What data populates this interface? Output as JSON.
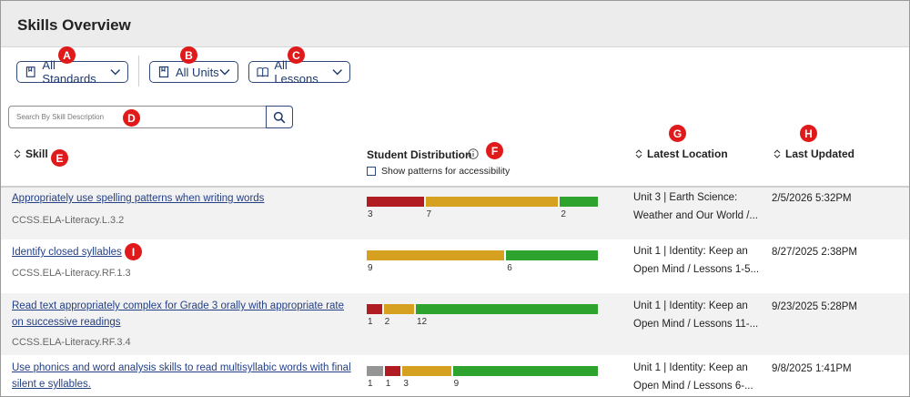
{
  "header": {
    "title": "Skills Overview"
  },
  "filters": {
    "standards_label": "All Standards",
    "units_label": "All Units",
    "lessons_label": "All Lessons"
  },
  "search": {
    "placeholder": "Search By Skill Description"
  },
  "columns": {
    "skill": "Skill",
    "distribution": "Student Distribution",
    "accessibility": "Show patterns for accessibility",
    "location": "Latest Location",
    "updated": "Last Updated"
  },
  "callouts": {
    "A": "A",
    "B": "B",
    "C": "C",
    "D": "D",
    "E": "E",
    "F": "F",
    "G": "G",
    "H": "H",
    "I": "I"
  },
  "colors": {
    "gray": "#959595",
    "red": "#b01c22",
    "yellow": "#d6a021",
    "green": "#2ea42e",
    "link": "#233f85"
  },
  "rows": [
    {
      "skill": "Appropriately use spelling patterns when writing words",
      "code": "CCSS.ELA-Literacy.L.3.2",
      "distribution": [
        {
          "color": "red",
          "count": "3"
        },
        {
          "color": "yellow",
          "count": "7"
        },
        {
          "color": "green",
          "count": "2"
        }
      ],
      "location": "Unit 3 | Earth Science: Weather and Our World /...",
      "updated": "2/5/2026 5:32PM"
    },
    {
      "skill": "Identify closed syllables",
      "code": "CCSS.ELA-Literacy.RF.1.3",
      "distribution": [
        {
          "color": "yellow",
          "count": "9"
        },
        {
          "color": "green",
          "count": "6"
        }
      ],
      "location": "Unit 1 | Identity: Keep an Open Mind / Lessons 1-5...",
      "updated": "8/27/2025 2:38PM"
    },
    {
      "skill": "Read text appropriately complex for Grade 3 orally with appropriate rate on successive readings",
      "code": "CCSS.ELA-Literacy.RF.3.4",
      "distribution": [
        {
          "color": "red",
          "count": "1"
        },
        {
          "color": "yellow",
          "count": "2"
        },
        {
          "color": "green",
          "count": "12"
        }
      ],
      "location": "Unit 1 | Identity: Keep an Open Mind / Lessons 11-...",
      "updated": "9/23/2025 5:28PM"
    },
    {
      "skill": "Use phonics and word analysis skills to read multisyllabic words with final silent e syllables.",
      "code": "",
      "distribution": [
        {
          "color": "gray",
          "count": "1"
        },
        {
          "color": "red",
          "count": "1"
        },
        {
          "color": "yellow",
          "count": "3"
        },
        {
          "color": "green",
          "count": "9"
        }
      ],
      "location": "Unit 1 | Identity: Keep an Open Mind / Lessons 6-...",
      "updated": "9/8/2025 1:41PM"
    }
  ]
}
